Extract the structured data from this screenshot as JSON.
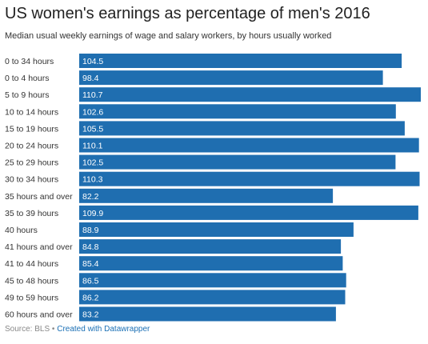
{
  "title": "US women's earnings as percentage of men's 2016",
  "subtitle": "Median usual weekly earnings of wage and salary workers, by hours usually worked",
  "footer": {
    "source": "Source: BLS",
    "separator": " • ",
    "credit": "Created with Datawrapper"
  },
  "colors": {
    "bar": "#1f6eb0",
    "bar_label": "#ffffff",
    "category_label": "#333333"
  },
  "chart_data": {
    "type": "bar",
    "orientation": "horizontal",
    "categories": [
      "0 to 34 hours",
      "0 to 4 hours",
      "5 to 9 hours",
      "10 to 14 hours",
      "15 to 19 hours",
      "20 to 24 hours",
      "25 to 29 hours",
      "30 to 34 hours",
      "35 hours and over",
      "35 to 39 hours",
      "40 hours",
      "41 hours and over",
      "41 to 44 hours",
      "45 to 48 hours",
      "49 to 59 hours",
      "60 hours and over"
    ],
    "values": [
      104.5,
      98.4,
      110.7,
      102.6,
      105.5,
      110.1,
      102.5,
      110.3,
      82.2,
      109.9,
      88.9,
      84.8,
      85.4,
      86.5,
      86.2,
      83.2
    ],
    "value_labels": [
      "104.5",
      "98.4",
      "110.7",
      "102.6",
      "105.5",
      "110.1",
      "102.5",
      "110.3",
      "82.2",
      "109.9",
      "88.9",
      "84.8",
      "85.4",
      "86.5",
      "86.2",
      "83.2"
    ],
    "xlim": [
      0,
      110.7
    ],
    "title": "US women's earnings as percentage of men's 2016",
    "xlabel": "",
    "ylabel": "",
    "grid": false,
    "legend": "none"
  }
}
